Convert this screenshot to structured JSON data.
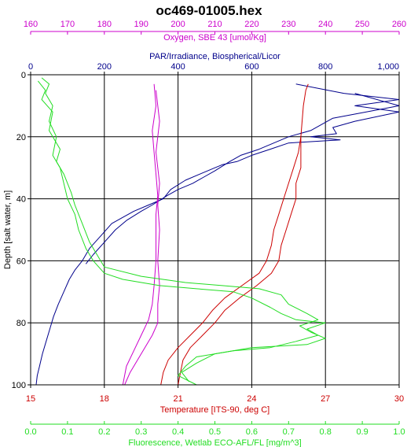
{
  "chart_data": {
    "type": "line",
    "title": "oc469-01005.hex",
    "grid": true,
    "y_axis": {
      "label": "Depth [salt water, m]",
      "range": [
        0,
        100
      ],
      "inverted": true,
      "ticks": [
        0,
        20,
        40,
        60,
        80,
        100
      ],
      "tick_labels": [
        "0",
        "20",
        "40",
        "60",
        "80",
        "100"
      ]
    },
    "x_axes": [
      {
        "id": "oxygen",
        "label": "Oxygen, SBE 43 [umol/Kg]",
        "position": "top",
        "color": "#cc00cc",
        "range": [
          160,
          260
        ],
        "ticks": [
          160,
          170,
          180,
          190,
          200,
          210,
          220,
          230,
          240,
          250,
          260
        ],
        "tick_labels": [
          "160",
          "170",
          "180",
          "190",
          "200",
          "210",
          "220",
          "230",
          "240",
          "250",
          "260"
        ]
      },
      {
        "id": "par",
        "label": "PAR/Irradiance, Biospherical/Licor",
        "position": "top",
        "color": "#00008b",
        "range": [
          0,
          1000
        ],
        "ticks": [
          0,
          200,
          400,
          600,
          800,
          1000
        ],
        "tick_labels": [
          "0",
          "200",
          "400",
          "600",
          "800",
          "1,000"
        ]
      },
      {
        "id": "temperature",
        "label": "Temperature [ITS-90, deg C]",
        "position": "bottom",
        "color": "#cc0000",
        "range": [
          15,
          30
        ],
        "ticks": [
          15,
          18,
          21,
          24,
          27,
          30
        ],
        "tick_labels": [
          "15",
          "18",
          "21",
          "24",
          "27",
          "30"
        ]
      },
      {
        "id": "fluorescence",
        "label": "Fluorescence, Wetlab ECO-AFL/FL [mg/m^3]",
        "position": "bottom",
        "color": "#22dd22",
        "range": [
          0,
          1
        ],
        "ticks": [
          0,
          0.1,
          0.2,
          0.3,
          0.4,
          0.5,
          0.6,
          0.7,
          0.8,
          0.9,
          1.0
        ],
        "tick_labels": [
          "0.0",
          "0.1",
          "0.2",
          "0.3",
          "0.4",
          "0.5",
          "0.6",
          "0.7",
          "0.8",
          "0.9",
          "1.0"
        ]
      }
    ],
    "series": [
      {
        "axis": "par",
        "color": "#00008b",
        "points": [
          [
            720,
            3
          ],
          [
            850,
            6
          ],
          [
            1000,
            8
          ],
          [
            880,
            10
          ],
          [
            1000,
            12
          ],
          [
            880,
            15
          ],
          [
            820,
            17
          ],
          [
            830,
            19
          ],
          [
            760,
            20
          ],
          [
            840,
            21
          ],
          [
            700,
            22
          ],
          [
            650,
            24
          ],
          [
            600,
            26
          ],
          [
            560,
            28
          ],
          [
            520,
            29
          ],
          [
            500,
            30
          ],
          [
            460,
            32
          ],
          [
            420,
            34
          ],
          [
            380,
            37
          ],
          [
            360,
            40
          ],
          [
            320,
            42
          ],
          [
            280,
            44
          ],
          [
            250,
            46
          ],
          [
            220,
            48
          ],
          [
            190,
            52
          ],
          [
            160,
            56
          ],
          [
            140,
            60
          ],
          [
            120,
            63
          ],
          [
            105,
            66
          ],
          [
            90,
            70
          ],
          [
            75,
            74
          ],
          [
            62,
            78
          ],
          [
            52,
            82
          ],
          [
            42,
            86
          ],
          [
            32,
            90
          ],
          [
            24,
            94
          ],
          [
            18,
            97
          ],
          [
            15,
            100
          ]
        ]
      },
      {
        "axis": "par",
        "color": "#00008b",
        "points": [
          [
            880,
            6
          ],
          [
            1000,
            10
          ],
          [
            820,
            14
          ],
          [
            760,
            18
          ],
          [
            700,
            20
          ],
          [
            660,
            22
          ],
          [
            620,
            24
          ],
          [
            570,
            26
          ],
          [
            540,
            28
          ],
          [
            500,
            31
          ],
          [
            470,
            33
          ],
          [
            440,
            35
          ],
          [
            400,
            37
          ],
          [
            370,
            39
          ],
          [
            330,
            42
          ],
          [
            300,
            44
          ],
          [
            260,
            47
          ],
          [
            230,
            50
          ],
          [
            200,
            54
          ],
          [
            170,
            58
          ],
          [
            150,
            61
          ]
        ]
      },
      {
        "axis": "oxygen",
        "color": "#cc00cc",
        "points": [
          [
            193.5,
            3
          ],
          [
            194,
            10
          ],
          [
            193,
            18
          ],
          [
            193.5,
            25
          ],
          [
            194,
            32
          ],
          [
            194.5,
            39
          ],
          [
            194,
            45
          ],
          [
            194,
            52
          ],
          [
            194,
            60
          ],
          [
            193.5,
            68
          ],
          [
            193,
            74
          ],
          [
            192,
            79
          ],
          [
            190,
            84
          ],
          [
            188,
            89
          ],
          [
            186,
            94
          ],
          [
            185,
            100
          ]
        ]
      },
      {
        "axis": "oxygen",
        "color": "#cc00cc",
        "points": [
          [
            194,
            5
          ],
          [
            195,
            15
          ],
          [
            194,
            25
          ],
          [
            195,
            35
          ],
          [
            194.5,
            42
          ],
          [
            195,
            50
          ],
          [
            194.5,
            60
          ],
          [
            195,
            68
          ],
          [
            194.5,
            74
          ],
          [
            194.5,
            80
          ],
          [
            193,
            84
          ],
          [
            191,
            88
          ],
          [
            189,
            92
          ],
          [
            187,
            96
          ],
          [
            185.5,
            100
          ]
        ]
      },
      {
        "axis": "temperature",
        "color": "#cc0000",
        "points": [
          [
            26.3,
            3
          ],
          [
            26.2,
            5
          ],
          [
            26.1,
            10
          ],
          [
            26.0,
            20
          ],
          [
            25.9,
            25
          ],
          [
            25.7,
            30
          ],
          [
            25.5,
            35
          ],
          [
            25.3,
            40
          ],
          [
            25.1,
            45
          ],
          [
            24.9,
            50
          ],
          [
            24.8,
            55
          ],
          [
            24.6,
            60
          ],
          [
            24.3,
            64
          ],
          [
            23.6,
            68
          ],
          [
            22.9,
            72
          ],
          [
            22.4,
            76
          ],
          [
            22.0,
            80
          ],
          [
            21.5,
            84
          ],
          [
            21.0,
            88
          ],
          [
            20.6,
            92
          ],
          [
            20.4,
            96
          ],
          [
            20.3,
            100
          ]
        ]
      },
      {
        "axis": "temperature",
        "color": "#cc0000",
        "points": [
          [
            26.0,
            20
          ],
          [
            26.0,
            30
          ],
          [
            25.8,
            35
          ],
          [
            25.8,
            40
          ],
          [
            25.6,
            45
          ],
          [
            25.4,
            50
          ],
          [
            25.2,
            55
          ],
          [
            25.1,
            60
          ],
          [
            24.8,
            64
          ],
          [
            24.2,
            68
          ],
          [
            23.5,
            72
          ],
          [
            22.9,
            76
          ],
          [
            22.5,
            80
          ],
          [
            22.0,
            84
          ],
          [
            21.5,
            88
          ],
          [
            21.2,
            92
          ],
          [
            21.1,
            96
          ],
          [
            21.0,
            100
          ]
        ]
      },
      {
        "axis": "fluorescence",
        "color": "#22dd22",
        "points": [
          [
            0.03,
            1
          ],
          [
            0.05,
            3
          ],
          [
            0.04,
            6
          ],
          [
            0.06,
            10
          ],
          [
            0.05,
            15
          ],
          [
            0.07,
            20
          ],
          [
            0.06,
            26
          ],
          [
            0.08,
            30
          ],
          [
            0.09,
            35
          ],
          [
            0.1,
            40
          ],
          [
            0.12,
            45
          ],
          [
            0.13,
            50
          ],
          [
            0.15,
            56
          ],
          [
            0.17,
            60
          ],
          [
            0.2,
            64
          ],
          [
            0.25,
            66
          ],
          [
            0.35,
            68
          ],
          [
            0.45,
            69
          ],
          [
            0.55,
            70
          ],
          [
            0.6,
            72
          ],
          [
            0.65,
            75
          ],
          [
            0.68,
            77
          ],
          [
            0.72,
            79
          ],
          [
            0.8,
            80
          ],
          [
            0.75,
            82
          ],
          [
            0.78,
            84
          ],
          [
            0.72,
            86
          ],
          [
            0.65,
            88
          ],
          [
            0.55,
            89
          ],
          [
            0.45,
            91
          ],
          [
            0.42,
            94
          ],
          [
            0.4,
            97
          ],
          [
            0.45,
            100
          ]
        ]
      },
      {
        "axis": "fluorescence",
        "color": "#22dd22",
        "points": [
          [
            0.02,
            2
          ],
          [
            0.04,
            5
          ],
          [
            0.03,
            8
          ],
          [
            0.06,
            12
          ],
          [
            0.05,
            18
          ],
          [
            0.08,
            24
          ],
          [
            0.07,
            28
          ],
          [
            0.09,
            32
          ],
          [
            0.11,
            38
          ],
          [
            0.12,
            42
          ],
          [
            0.14,
            48
          ],
          [
            0.16,
            54
          ],
          [
            0.18,
            58
          ],
          [
            0.2,
            62
          ],
          [
            0.3,
            65
          ],
          [
            0.42,
            67
          ],
          [
            0.52,
            68
          ],
          [
            0.62,
            69
          ],
          [
            0.68,
            71
          ],
          [
            0.7,
            74
          ],
          [
            0.75,
            77
          ],
          [
            0.78,
            79
          ],
          [
            0.73,
            81
          ],
          [
            0.76,
            83
          ],
          [
            0.8,
            85
          ],
          [
            0.75,
            87
          ],
          [
            0.6,
            88
          ],
          [
            0.5,
            90
          ],
          [
            0.45,
            93
          ],
          [
            0.41,
            96
          ],
          [
            0.43,
            99
          ]
        ]
      }
    ]
  }
}
